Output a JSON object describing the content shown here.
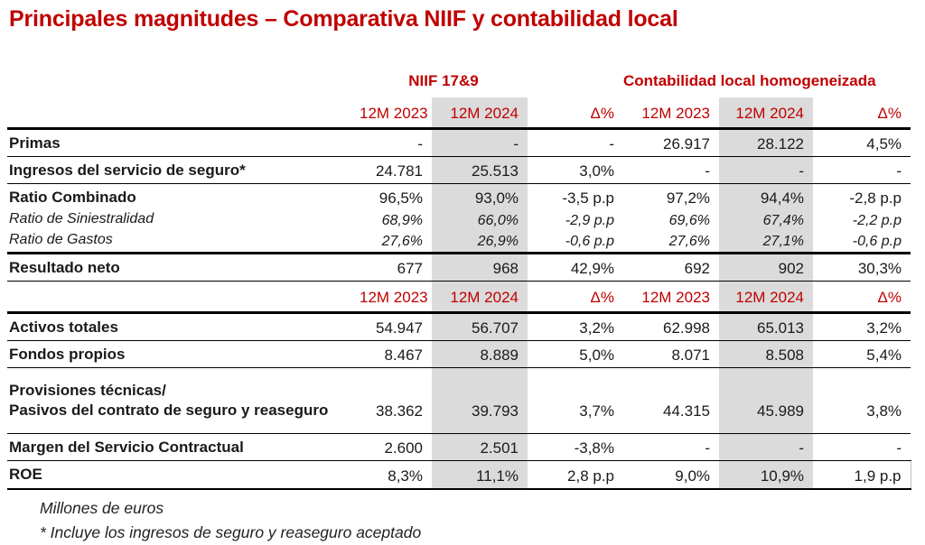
{
  "title": "Principales magnitudes – Comparativa NIIF y contabilidad local",
  "colors": {
    "accent_red": "#C00000",
    "band_gray": "#DBDBDB",
    "rule_black": "#000000"
  },
  "table": {
    "group_headers": {
      "niif": "NIIF 17&9",
      "local": "Contabilidad local homogeneizada"
    },
    "column_headers": [
      "12M 2023",
      "12M 2024",
      "Δ%",
      "12M 2023",
      "12M 2024",
      "Δ%"
    ],
    "rows": [
      {
        "kind": "data",
        "label": "Primas",
        "emphasis": "bold",
        "values": [
          "-",
          "-",
          "-",
          "26.917",
          "28.122",
          "4,5%"
        ],
        "rule": "thin"
      },
      {
        "kind": "data",
        "label": "Ingresos del servicio de seguro*",
        "emphasis": "bold",
        "values": [
          "24.781",
          "25.513",
          "3,0%",
          "-",
          "-",
          "-"
        ],
        "rule": "thin"
      },
      {
        "kind": "data",
        "label": "Ratio Combinado",
        "emphasis": "bold",
        "values": [
          "96,5%",
          "93,0%",
          "-3,5 p.p",
          "97,2%",
          "94,4%",
          "-2,8 p.p"
        ],
        "rule": "none"
      },
      {
        "kind": "data",
        "label": "Ratio de Siniestralidad",
        "emphasis": "italic",
        "values": [
          "68,9%",
          "66,0%",
          "-2,9 p.p",
          "69,6%",
          "67,4%",
          "-2,2 p.p"
        ],
        "rule": "none"
      },
      {
        "kind": "data",
        "label": "Ratio de Gastos",
        "emphasis": "italic",
        "values": [
          "27,6%",
          "26,9%",
          "-0,6 p.p",
          "27,6%",
          "27,1%",
          "-0,6 p.p"
        ],
        "rule": "thick"
      },
      {
        "kind": "data",
        "label": "Resultado neto",
        "emphasis": "bold",
        "values": [
          "677",
          "968",
          "42,9%",
          "692",
          "902",
          "30,3%"
        ],
        "rule": "thin"
      },
      {
        "kind": "column-headers"
      },
      {
        "kind": "data",
        "label": "Activos totales",
        "emphasis": "bold",
        "values": [
          "54.947",
          "56.707",
          "3,2%",
          "62.998",
          "65.013",
          "3,2%"
        ],
        "rule": "thin"
      },
      {
        "kind": "data",
        "label": "Fondos propios",
        "emphasis": "bold",
        "values": [
          "8.467",
          "8.889",
          "5,0%",
          "8.071",
          "8.508",
          "5,4%"
        ],
        "rule": "thin"
      },
      {
        "kind": "data",
        "label": "Provisiones técnicas/\nPasivos del contrato de seguro y reaseguro",
        "emphasis": "bold",
        "values": [
          "38.362",
          "39.793",
          "3,7%",
          "44.315",
          "45.989",
          "3,8%"
        ],
        "rule": "thin"
      },
      {
        "kind": "data",
        "label": "Margen del Servicio Contractual",
        "emphasis": "bold",
        "values": [
          "2.600",
          "2.501",
          "-3,8%",
          "-",
          "-",
          "-"
        ],
        "rule": "thin"
      },
      {
        "kind": "data",
        "label": "ROE",
        "emphasis": "bold",
        "values": [
          "8,3%",
          "11,1%",
          "2,8 p.p",
          "9,0%",
          "10,9%",
          "1,9 p.p"
        ],
        "rule": "bottom"
      }
    ]
  },
  "footnotes": {
    "units": "Millones de euros",
    "asterisk": "* Incluye los ingresos de seguro y reaseguro aceptado"
  }
}
